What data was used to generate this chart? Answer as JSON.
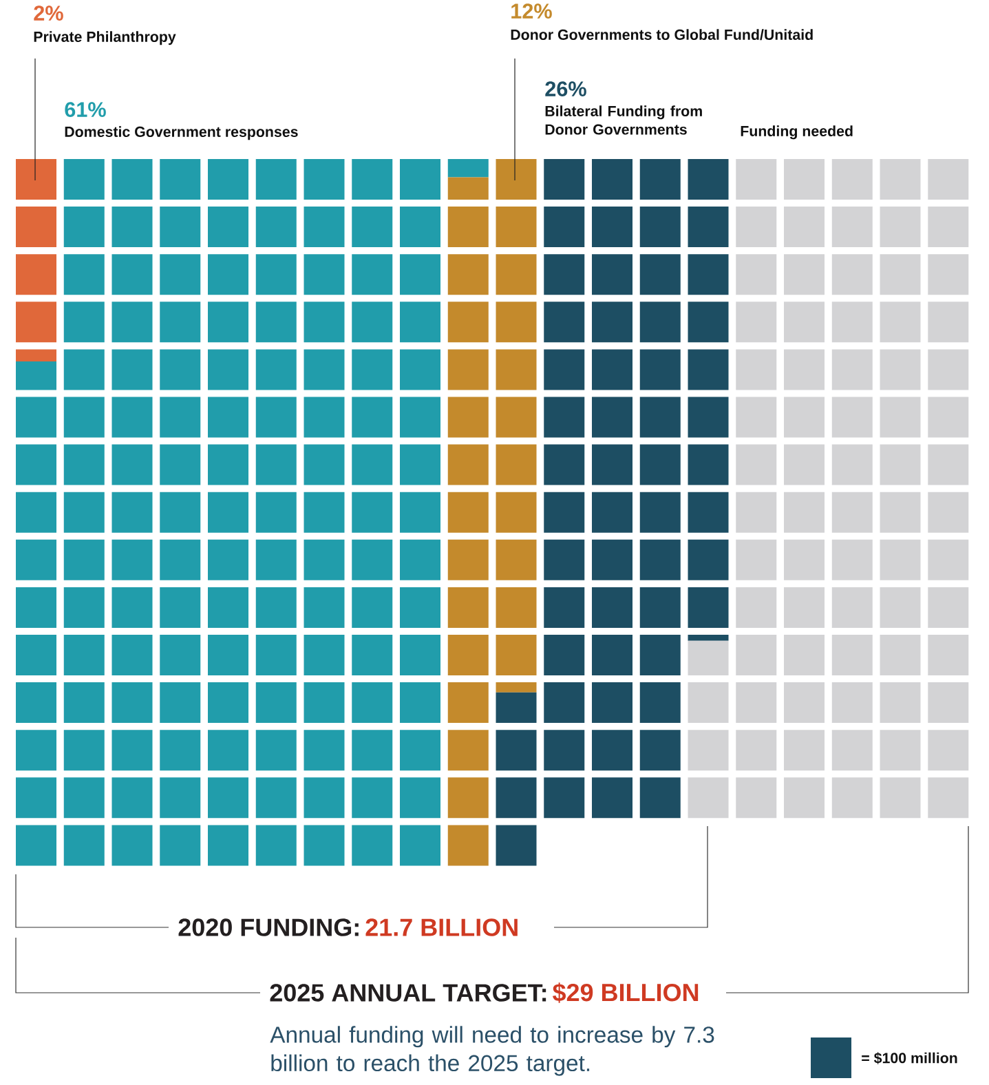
{
  "chart_data": {
    "type": "other",
    "categories": [
      "Private Philanthropy",
      "Domestic Government responses",
      "Donor Governments to Global Fund/Unitaid",
      "Bilateral Funding from Donor Governments",
      "Funding needed"
    ],
    "values": [
      2,
      61,
      12,
      26,
      null
    ],
    "value_labels": [
      "2%",
      "61%",
      "12%",
      "26%",
      null
    ],
    "colors": [
      "#e0683a",
      "#219dab",
      "#c48a2c",
      "#1d4e63",
      "#d3d3d5"
    ],
    "annotations": [
      "2020 FUNDING:",
      "21.7 BILLION",
      "2025 ANNUAL TARGET:",
      "$29 BILLION",
      "Annual funding will need to increase by 7.3 billion to reach the 2025 target.",
      "= $100 million"
    ]
  }
}
